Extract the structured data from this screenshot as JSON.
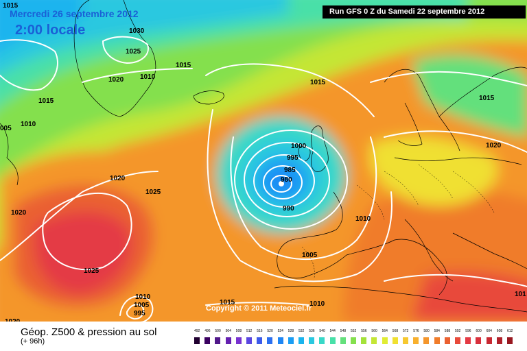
{
  "header": {
    "date": "Mercredi 26 septembre 2012",
    "time": "2:00 locale",
    "run": "Run GFS 0 Z du Samedi 22 septembre 2012"
  },
  "footer": {
    "copyright": "Copyright © 2011 Meteociel.fr",
    "legend_title": "Géop. Z500 & pression au sol",
    "legend_subtitle": "(+ 96h)"
  },
  "scale": {
    "values": [
      "492",
      "496",
      "500",
      "504",
      "508",
      "512",
      "516",
      "520",
      "524",
      "528",
      "532",
      "536",
      "540",
      "544",
      "548",
      "552",
      "556",
      "560",
      "564",
      "568",
      "572",
      "576",
      "580",
      "584",
      "588",
      "592",
      "596",
      "600",
      "604",
      "608",
      "612"
    ],
    "colors": [
      "#200030",
      "#3a0060",
      "#50188a",
      "#6420b0",
      "#7832d0",
      "#5a46e0",
      "#3c5aea",
      "#2c6ff0",
      "#1e86f4",
      "#1a9df4",
      "#1ab4ee",
      "#2ac8e0",
      "#38d8c8",
      "#48e0a8",
      "#64e07c",
      "#84e04e",
      "#a4e23a",
      "#c4e636",
      "#e0ec34",
      "#f0e032",
      "#f6c830",
      "#f8b02e",
      "#f4962c",
      "#f07c2a",
      "#ea6030",
      "#e84a3a",
      "#e43a44",
      "#d8303c",
      "#c82832",
      "#b0202a",
      "#981820"
    ]
  },
  "map": {
    "isobar_labels": [
      {
        "text": "1015"
      },
      {
        "text": "1030"
      },
      {
        "text": "1025"
      },
      {
        "text": "1015"
      },
      {
        "text": "1020"
      },
      {
        "text": "1010"
      },
      {
        "text": "1015"
      },
      {
        "text": "1015"
      },
      {
        "text": "1010"
      },
      {
        "text": "005"
      },
      {
        "text": "1020"
      },
      {
        "text": "1015"
      },
      {
        "text": "1000"
      },
      {
        "text": "995"
      },
      {
        "text": "985"
      },
      {
        "text": "980"
      },
      {
        "text": "990"
      },
      {
        "text": "1020"
      },
      {
        "text": "1025"
      },
      {
        "text": "1020"
      },
      {
        "text": "1010"
      },
      {
        "text": "1005"
      },
      {
        "text": "1025"
      },
      {
        "text": "1015"
      },
      {
        "text": "1010"
      },
      {
        "text": "1010"
      },
      {
        "text": "1005"
      },
      {
        "text": "995"
      },
      {
        "text": "1020"
      },
      {
        "text": "101"
      }
    ]
  }
}
